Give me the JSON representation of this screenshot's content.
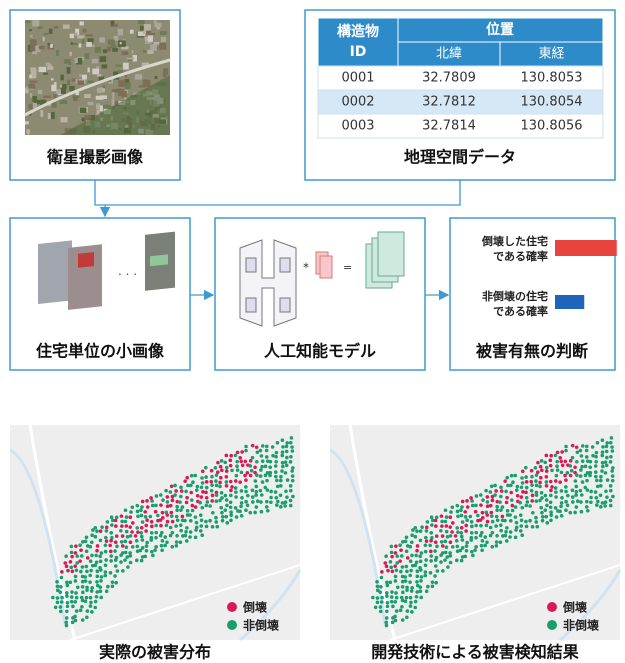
{
  "inputs": {
    "satellite_caption": "衛星撮影画像",
    "geo_caption": "地理空間データ"
  },
  "table": {
    "id_header": [
      "構造物",
      "ID"
    ],
    "position_header": "位置",
    "subheader": [
      "北緯",
      "東経"
    ],
    "rows": [
      [
        "0001",
        "32.7809",
        "130.8053"
      ],
      [
        "0002",
        "32.7812",
        "130.8054"
      ],
      [
        "0003",
        "32.7814",
        "130.8056"
      ]
    ]
  },
  "steps": [
    {
      "label": "住宅単位の小画像"
    },
    {
      "label": "人工知能モデル"
    },
    {
      "label": "被害有無の判断"
    }
  ],
  "judgment": {
    "items": [
      {
        "lines": [
          "倒壊した住宅",
          "である確率"
        ],
        "value": 0.95,
        "color": "#e8423c"
      },
      {
        "lines": [
          "非倒壊の住宅",
          "である確率"
        ],
        "value": 0.45,
        "color": "#1f64b8"
      }
    ]
  },
  "maps": [
    {
      "caption": "実際の被害分布"
    },
    {
      "caption": "開発技術による被害検知結果"
    }
  ],
  "legend": [
    {
      "label": "倒壊",
      "color": "#d81b55"
    },
    {
      "label": "非倒壊",
      "color": "#1a9e6e"
    }
  ]
}
